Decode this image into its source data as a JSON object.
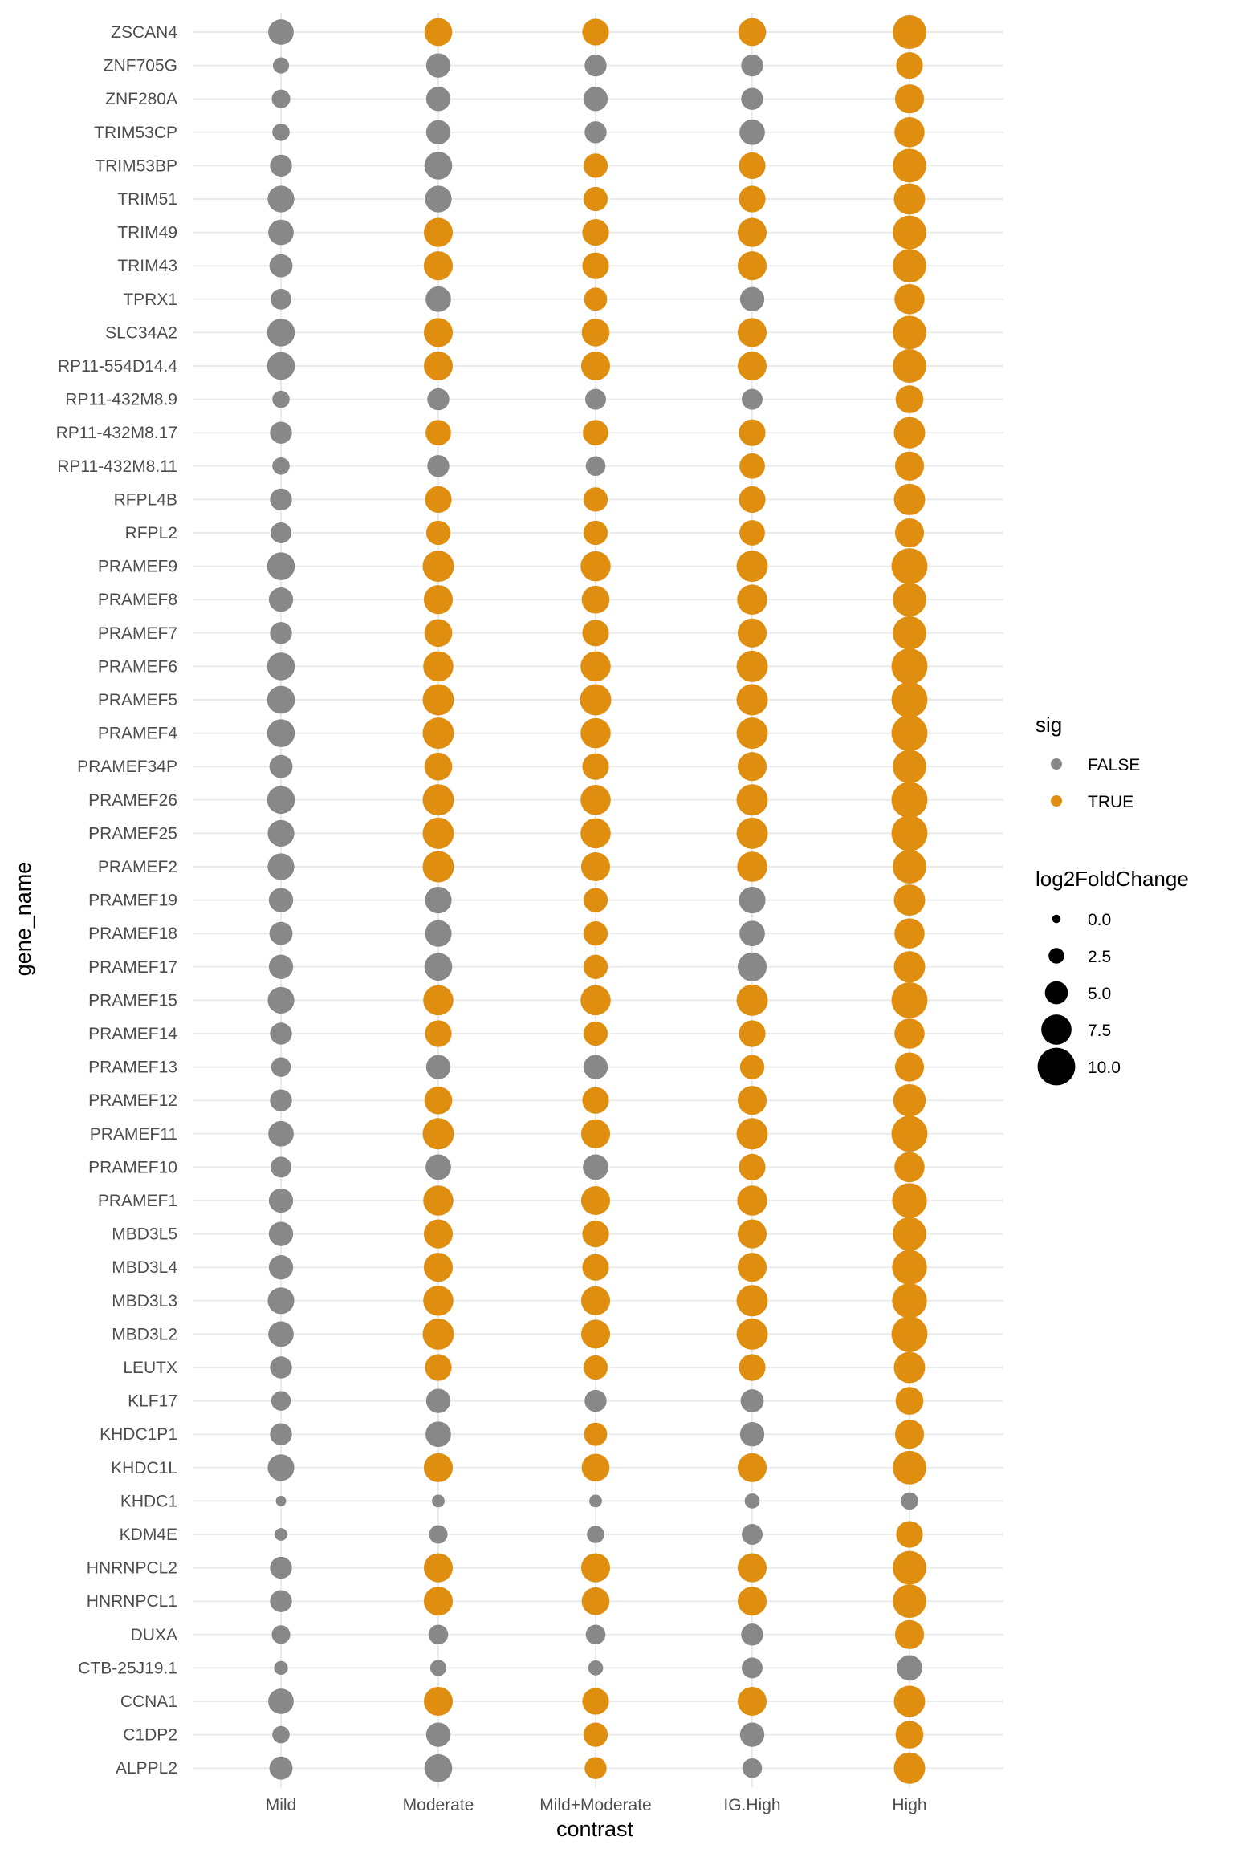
{
  "chart_data": {
    "type": "scatter",
    "title": "",
    "xlabel": "contrast",
    "ylabel": "gene_name",
    "categories": [
      "Mild",
      "Moderate",
      "Mild+Moderate",
      "IG.High",
      "High"
    ],
    "genes": [
      "ZSCAN4",
      "ZNF705G",
      "ZNF280A",
      "TRIM53CP",
      "TRIM53BP",
      "TRIM51",
      "TRIM49",
      "TRIM43",
      "TPRX1",
      "SLC34A2",
      "RP11-554D14.4",
      "RP11-432M8.9",
      "RP11-432M8.17",
      "RP11-432M8.11",
      "RFPL4B",
      "RFPL2",
      "PRAMEF9",
      "PRAMEF8",
      "PRAMEF7",
      "PRAMEF6",
      "PRAMEF5",
      "PRAMEF4",
      "PRAMEF34P",
      "PRAMEF26",
      "PRAMEF25",
      "PRAMEF2",
      "PRAMEF19",
      "PRAMEF18",
      "PRAMEF17",
      "PRAMEF15",
      "PRAMEF14",
      "PRAMEF13",
      "PRAMEF12",
      "PRAMEF11",
      "PRAMEF10",
      "PRAMEF1",
      "MBD3L5",
      "MBD3L4",
      "MBD3L3",
      "MBD3L2",
      "LEUTX",
      "KLF17",
      "KHDC1P1",
      "KHDC1L",
      "KHDC1",
      "KDM4E",
      "HNRNPCL2",
      "HNRNPCL1",
      "DUXA",
      "CTB-25J19.1",
      "CCNA1",
      "C1DP2",
      "ALPPL2"
    ],
    "log2FoldChange": [
      [
        7.5,
        8.5,
        8,
        8.5,
        11
      ],
      [
        3.5,
        7,
        6,
        6,
        8
      ],
      [
        4.5,
        7,
        7,
        6,
        9
      ],
      [
        4,
        7,
        6,
        7.5,
        9.5
      ],
      [
        6,
        8.5,
        7,
        8,
        11
      ],
      [
        8,
        8,
        7,
        8,
        10
      ],
      [
        7.5,
        9,
        8,
        9,
        11
      ],
      [
        6.5,
        9,
        8,
        9,
        11
      ],
      [
        5.5,
        7.5,
        6.5,
        7,
        9.5
      ],
      [
        8.5,
        9,
        8.5,
        9,
        11
      ],
      [
        8.5,
        9,
        9,
        9,
        11
      ],
      [
        4,
        6,
        5.5,
        5.5,
        8.5
      ],
      [
        6,
        7.5,
        7.5,
        8,
        10
      ],
      [
        4,
        6,
        5,
        7.5,
        9
      ],
      [
        6,
        8,
        7,
        8,
        10
      ],
      [
        5.5,
        7,
        7,
        7.5,
        9
      ],
      [
        8.5,
        10,
        9.5,
        10,
        12
      ],
      [
        7,
        9,
        8.5,
        9.5,
        11
      ],
      [
        6,
        8.5,
        8,
        9,
        11
      ],
      [
        8.5,
        9.5,
        9.5,
        10,
        12
      ],
      [
        8.5,
        10,
        10,
        10,
        12
      ],
      [
        8.5,
        10,
        9.5,
        10,
        12
      ],
      [
        6.5,
        8.5,
        8,
        9,
        11
      ],
      [
        8.5,
        10,
        9.5,
        10,
        12
      ],
      [
        8,
        10,
        9.5,
        10,
        12
      ],
      [
        8,
        10,
        9,
        9.5,
        11
      ],
      [
        7,
        8,
        7,
        8,
        10
      ],
      [
        6.5,
        8,
        7,
        7.5,
        9.5
      ],
      [
        7,
        8.5,
        7,
        9,
        10
      ],
      [
        8,
        9.5,
        9.5,
        10,
        12
      ],
      [
        6,
        8,
        7,
        8,
        9.5
      ],
      [
        5,
        7,
        7,
        7,
        9
      ],
      [
        6,
        8.5,
        8,
        9,
        10.5
      ],
      [
        7.5,
        10,
        9,
        10,
        12
      ],
      [
        5.5,
        7.5,
        7.5,
        8,
        9.5
      ],
      [
        7,
        9.5,
        9,
        9.5,
        11.5
      ],
      [
        7,
        9,
        8,
        9,
        11
      ],
      [
        7,
        9,
        8,
        9,
        11.5
      ],
      [
        8,
        9.5,
        9,
        10,
        11.5
      ],
      [
        7.5,
        10,
        9,
        10,
        12
      ],
      [
        6,
        8,
        7,
        8,
        10
      ],
      [
        5,
        7,
        6,
        6.5,
        8.5
      ],
      [
        6,
        7.5,
        6.5,
        7,
        9
      ],
      [
        8,
        9,
        8.5,
        9,
        11
      ],
      [
        1,
        2,
        2,
        3,
        4
      ],
      [
        2,
        4.5,
        4,
        5.5,
        8
      ],
      [
        6,
        9,
        9,
        9,
        11
      ],
      [
        6,
        9,
        8.5,
        9,
        11
      ],
      [
        4.5,
        5,
        5,
        6,
        9
      ],
      [
        2.5,
        3.5,
        3,
        5.5,
        7.5
      ],
      [
        7.5,
        9,
        8,
        9,
        10
      ],
      [
        4,
        7,
        7,
        7,
        8.5
      ],
      [
        6.5,
        8.5,
        6,
        5,
        10
      ]
    ],
    "sig": [
      [
        false,
        true,
        true,
        true,
        true
      ],
      [
        false,
        false,
        false,
        false,
        true
      ],
      [
        false,
        false,
        false,
        false,
        true
      ],
      [
        false,
        false,
        false,
        false,
        true
      ],
      [
        false,
        false,
        true,
        true,
        true
      ],
      [
        false,
        false,
        true,
        true,
        true
      ],
      [
        false,
        true,
        true,
        true,
        true
      ],
      [
        false,
        true,
        true,
        true,
        true
      ],
      [
        false,
        false,
        true,
        false,
        true
      ],
      [
        false,
        true,
        true,
        true,
        true
      ],
      [
        false,
        true,
        true,
        true,
        true
      ],
      [
        false,
        false,
        false,
        false,
        true
      ],
      [
        false,
        true,
        true,
        true,
        true
      ],
      [
        false,
        false,
        false,
        true,
        true
      ],
      [
        false,
        true,
        true,
        true,
        true
      ],
      [
        false,
        true,
        true,
        true,
        true
      ],
      [
        false,
        true,
        true,
        true,
        true
      ],
      [
        false,
        true,
        true,
        true,
        true
      ],
      [
        false,
        true,
        true,
        true,
        true
      ],
      [
        false,
        true,
        true,
        true,
        true
      ],
      [
        false,
        true,
        true,
        true,
        true
      ],
      [
        false,
        true,
        true,
        true,
        true
      ],
      [
        false,
        true,
        true,
        true,
        true
      ],
      [
        false,
        true,
        true,
        true,
        true
      ],
      [
        false,
        true,
        true,
        true,
        true
      ],
      [
        false,
        true,
        true,
        true,
        true
      ],
      [
        false,
        false,
        true,
        false,
        true
      ],
      [
        false,
        false,
        true,
        false,
        true
      ],
      [
        false,
        false,
        true,
        false,
        true
      ],
      [
        false,
        true,
        true,
        true,
        true
      ],
      [
        false,
        true,
        true,
        true,
        true
      ],
      [
        false,
        false,
        false,
        true,
        true
      ],
      [
        false,
        true,
        true,
        true,
        true
      ],
      [
        false,
        true,
        true,
        true,
        true
      ],
      [
        false,
        false,
        false,
        true,
        true
      ],
      [
        false,
        true,
        true,
        true,
        true
      ],
      [
        false,
        true,
        true,
        true,
        true
      ],
      [
        false,
        true,
        true,
        true,
        true
      ],
      [
        false,
        true,
        true,
        true,
        true
      ],
      [
        false,
        true,
        true,
        true,
        true
      ],
      [
        false,
        true,
        true,
        true,
        true
      ],
      [
        false,
        false,
        false,
        false,
        true
      ],
      [
        false,
        false,
        true,
        false,
        true
      ],
      [
        false,
        true,
        true,
        true,
        true
      ],
      [
        false,
        false,
        false,
        false,
        false
      ],
      [
        false,
        false,
        false,
        false,
        true
      ],
      [
        false,
        true,
        true,
        true,
        true
      ],
      [
        false,
        true,
        true,
        true,
        true
      ],
      [
        false,
        false,
        false,
        false,
        true
      ],
      [
        false,
        false,
        false,
        false,
        false
      ],
      [
        false,
        true,
        true,
        true,
        true
      ],
      [
        false,
        false,
        true,
        false,
        true
      ],
      [
        false,
        false,
        true,
        false,
        true
      ]
    ],
    "grid": true,
    "legend_placement": "right",
    "legend": {
      "color_title": "sig",
      "color_entries": [
        {
          "label": "FALSE",
          "color": "#888888"
        },
        {
          "label": "TRUE",
          "color": "#df8e0f"
        }
      ],
      "size_title": "log2FoldChange",
      "size_entries": [
        {
          "label": "0.0",
          "value": 0
        },
        {
          "label": "2.5",
          "value": 2.5
        },
        {
          "label": "5.0",
          "value": 5
        },
        {
          "label": "7.5",
          "value": 7.5
        },
        {
          "label": "10.0",
          "value": 10
        }
      ]
    }
  }
}
